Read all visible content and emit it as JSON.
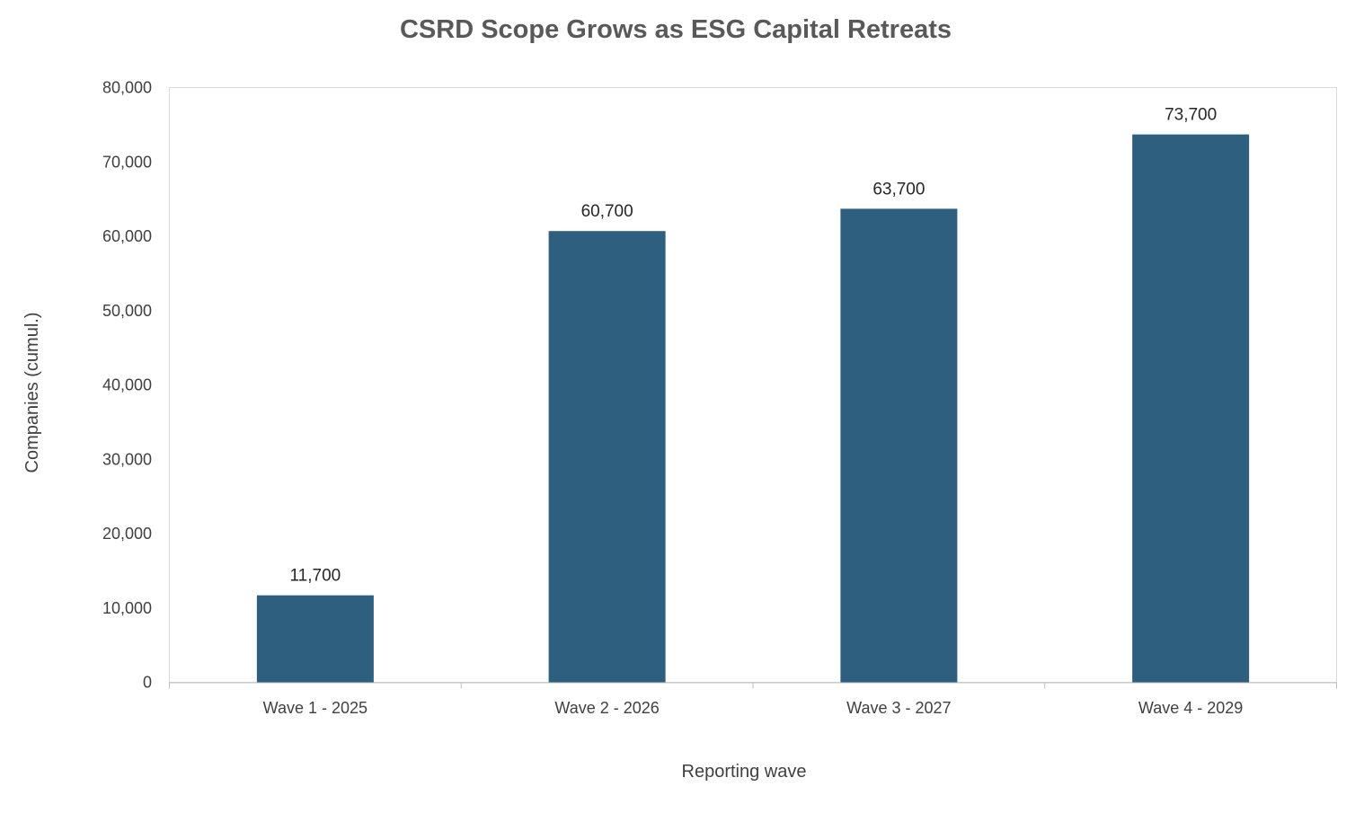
{
  "chart_data": {
    "type": "bar",
    "title": "CSRD Scope Grows as ESG Capital Retreats",
    "xlabel": "Reporting wave",
    "ylabel": "Companies (cumul.)",
    "categories": [
      "Wave 1 - 2025",
      "Wave 2 - 2026",
      "Wave 3 - 2027",
      "Wave 4 - 2029"
    ],
    "values": [
      11700,
      60700,
      63700,
      73700
    ],
    "value_labels": [
      "11,700",
      "60,700",
      "63,700",
      "73,700"
    ],
    "ylim": [
      0,
      80000
    ],
    "yticks": [
      0,
      10000,
      20000,
      30000,
      40000,
      50000,
      60000,
      70000,
      80000
    ],
    "ytick_labels": [
      "0",
      "10,000",
      "20,000",
      "30,000",
      "40,000",
      "50,000",
      "60,000",
      "70,000",
      "80,000"
    ],
    "grid": false,
    "legend": "none",
    "bar_color": "#2e5f7e"
  }
}
